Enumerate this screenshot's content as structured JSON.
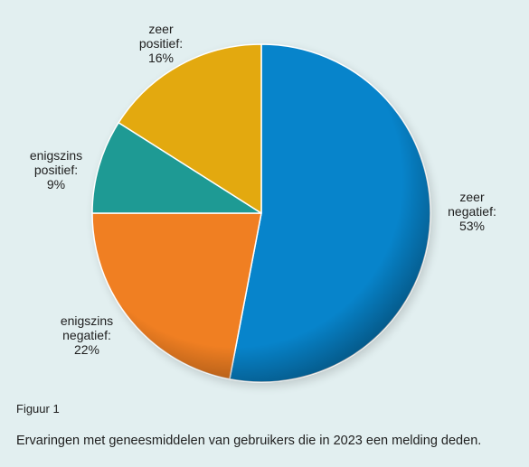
{
  "chart_data": {
    "type": "pie",
    "categories": [
      "zeer negatief",
      "enigszins negatief",
      "enigszins positief",
      "zeer positief"
    ],
    "values": [
      53,
      22,
      9,
      16
    ],
    "unit": "%",
    "start": "12 o'clock",
    "direction": "clockwise",
    "colors": [
      "#0784cb",
      "#f07f22",
      "#1e9a94",
      "#e3a90f"
    ],
    "labels": [
      [
        "zeer",
        "negatief:",
        "53%"
      ],
      [
        "enigszins",
        "negatief:",
        "22%"
      ],
      [
        "enigszins",
        "positief:",
        "9%"
      ],
      [
        "zeer",
        "positief:",
        "16%"
      ]
    ]
  },
  "caption": {
    "number": "Figuur 1",
    "text": "Ervaringen met geneesmiddelen van gebruikers die in 2023 een melding deden."
  }
}
